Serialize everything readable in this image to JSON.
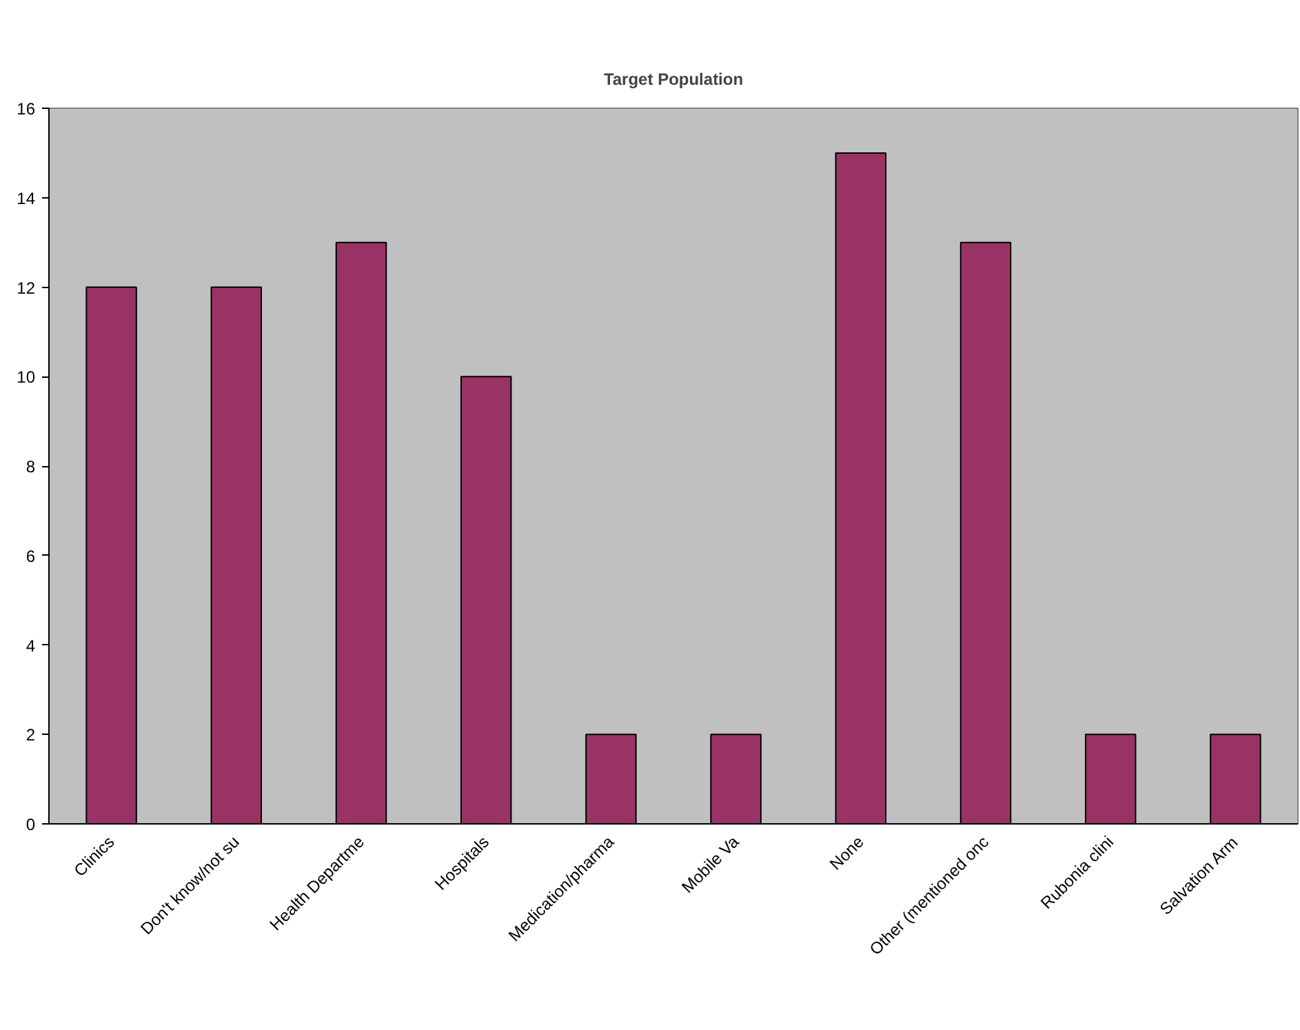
{
  "chart_data": {
    "type": "bar",
    "title": "Target Population",
    "categories": [
      "Clinics",
      "Don't know/not su",
      "Health Departme",
      "Hospitals",
      "Medication/pharma",
      "Mobile Va",
      "None",
      "Other (mentioned onc",
      "Rubonia clini",
      "Salvation Arm"
    ],
    "values": [
      12,
      12,
      13,
      10,
      2,
      2,
      15,
      13,
      2,
      2
    ],
    "color": "#993366",
    "ylim": [
      0,
      16
    ],
    "yticks": [
      0,
      2,
      4,
      6,
      8,
      10,
      12,
      14,
      16
    ],
    "grid": false
  }
}
